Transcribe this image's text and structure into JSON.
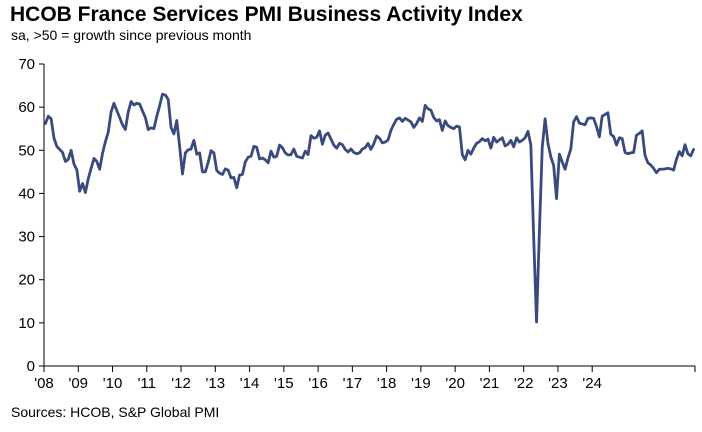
{
  "chart_data": {
    "type": "line",
    "title": "HCOB France Services PMI Business Activity Index",
    "subtitle": "sa, >50 = growth since previous month",
    "source": "Sources: HCOB, S&P Global PMI",
    "xlabel": "",
    "ylabel": "",
    "ylim": [
      0,
      70
    ],
    "yticks": [
      0,
      10,
      20,
      30,
      40,
      50,
      60,
      70
    ],
    "xticks": [
      "'08",
      "'09",
      "'10",
      "'11",
      "'12",
      "'13",
      "'14",
      "'15",
      "'16",
      "'17",
      "'18",
      "'19",
      "'20",
      "'21",
      "'22",
      "'23",
      "'24"
    ],
    "xstart_year": 2008,
    "grid": false,
    "line_color": "#3b4a7e",
    "series": [
      {
        "name": "",
        "values": [
          56.2,
          57.9,
          57.3,
          52.8,
          50.9,
          50.2,
          49.5,
          47.4,
          47.9,
          50.0,
          46.8,
          45.5,
          40.5,
          42.3,
          40.2,
          43.4,
          45.8,
          48.1,
          47.4,
          45.6,
          49.3,
          52.0,
          54.2,
          58.9,
          60.9,
          59.2,
          57.6,
          55.9,
          54.8,
          58.9,
          61.3,
          60.5,
          60.9,
          60.7,
          59.1,
          57.6,
          54.8,
          55.2,
          55.0,
          57.9,
          60.3,
          63.0,
          62.8,
          61.8,
          55.3,
          53.8,
          56.9,
          50.9,
          44.5,
          49.4,
          50.1,
          50.3,
          52.3,
          49.1,
          49.4,
          45.0,
          45.0,
          47.2,
          49.9,
          49.4,
          45.3,
          44.7,
          44.4,
          45.7,
          45.4,
          43.6,
          43.7,
          41.3,
          44.3,
          44.4,
          47.3,
          48.4,
          48.6,
          50.9,
          50.7,
          48.0,
          48.2,
          47.8,
          47.1,
          49.8,
          48.4,
          48.6,
          51.2,
          50.6,
          49.4,
          48.9,
          49.0,
          50.3,
          48.6,
          48.4,
          48.2,
          49.8,
          49.0,
          53.4,
          52.8,
          53.0,
          54.5,
          51.4,
          53.5,
          54.0,
          52.6,
          51.2,
          50.5,
          51.6,
          51.3,
          50.2,
          49.6,
          50.3,
          49.5,
          49.2,
          49.4,
          50.3,
          50.6,
          51.6,
          50.2,
          51.5,
          53.3,
          52.8,
          51.7,
          51.9,
          52.4,
          54.6,
          56.0,
          57.2,
          57.5,
          56.7,
          57.4,
          57.0,
          56.6,
          55.3,
          56.2,
          57.5,
          56.7,
          60.4,
          59.6,
          59.3,
          57.6,
          56.8,
          57.1,
          54.6,
          56.8,
          55.7,
          55.3,
          55.0,
          55.6,
          55.4,
          49.0,
          47.8,
          50.0,
          49.1,
          50.5,
          51.6,
          52.0,
          52.7,
          52.2,
          52.6,
          50.5,
          53.0,
          51.9,
          52.4,
          52.9,
          51.0,
          51.4,
          52.3,
          50.8,
          52.9,
          51.9,
          52.3,
          52.9,
          54.4,
          51.3,
          29.9,
          10.2,
          31.1,
          50.7,
          57.3,
          51.6,
          48.5,
          46.5,
          38.8,
          49.1,
          47.3,
          45.6,
          48.2,
          50.3,
          56.6,
          57.8,
          56.3,
          56.1,
          55.9,
          57.4,
          57.5,
          57.4,
          55.5,
          53.1,
          57.9,
          58.3,
          58.7,
          53.7,
          53.2,
          51.2,
          52.9,
          52.7,
          49.5,
          49.2,
          49.4,
          49.5,
          53.5,
          53.9,
          54.5,
          48.8,
          47.1,
          46.6,
          45.8,
          44.8,
          45.6,
          45.6,
          45.7,
          45.8,
          45.7,
          45.4,
          47.9,
          49.7,
          48.7,
          51.3,
          49.2,
          48.7,
          50.2
        ]
      }
    ]
  }
}
